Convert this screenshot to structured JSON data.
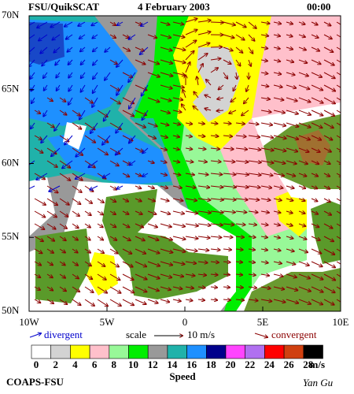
{
  "header": {
    "title": "FSU/QuikSCAT",
    "date": "4 February 2003",
    "time": "00:00"
  },
  "map": {
    "lat_ticks": [
      {
        "value": 70,
        "label": "70N"
      },
      {
        "value": 65,
        "label": "65N"
      },
      {
        "value": 60,
        "label": "60N"
      },
      {
        "value": 55,
        "label": "55N"
      },
      {
        "value": 50,
        "label": "50N"
      }
    ],
    "lon_ticks": [
      {
        "value": -10,
        "label": "10W"
      },
      {
        "value": -5,
        "label": "5W"
      },
      0,
      {
        "value": 5,
        "label": "5E"
      },
      {
        "value": 10,
        "label": "10E"
      }
    ],
    "latlim": [
      50,
      70
    ],
    "lonlim": [
      -10,
      10
    ]
  },
  "legend": {
    "divergent": "divergent",
    "scale": "scale",
    "scale_value": "10 m/s",
    "convergent": "convergent"
  },
  "colorbar": {
    "ticks": [
      0,
      2,
      4,
      6,
      8,
      10,
      12,
      14,
      16,
      18,
      20,
      22,
      24,
      26,
      28
    ],
    "colors": [
      "#ffffff",
      "#d3d3d3",
      "#ffff00",
      "#ffc0cb",
      "#98f898",
      "#00ee00",
      "#999999",
      "#20b2aa",
      "#1e90ff",
      "#00008b",
      "#ff44ff",
      "#b070f0",
      "#ff0000",
      "#d04010",
      "#000000"
    ],
    "unit": "m/s",
    "label": "Speed"
  },
  "footer": {
    "left": "COAPS-FSU",
    "right": "Yan Gu"
  }
}
